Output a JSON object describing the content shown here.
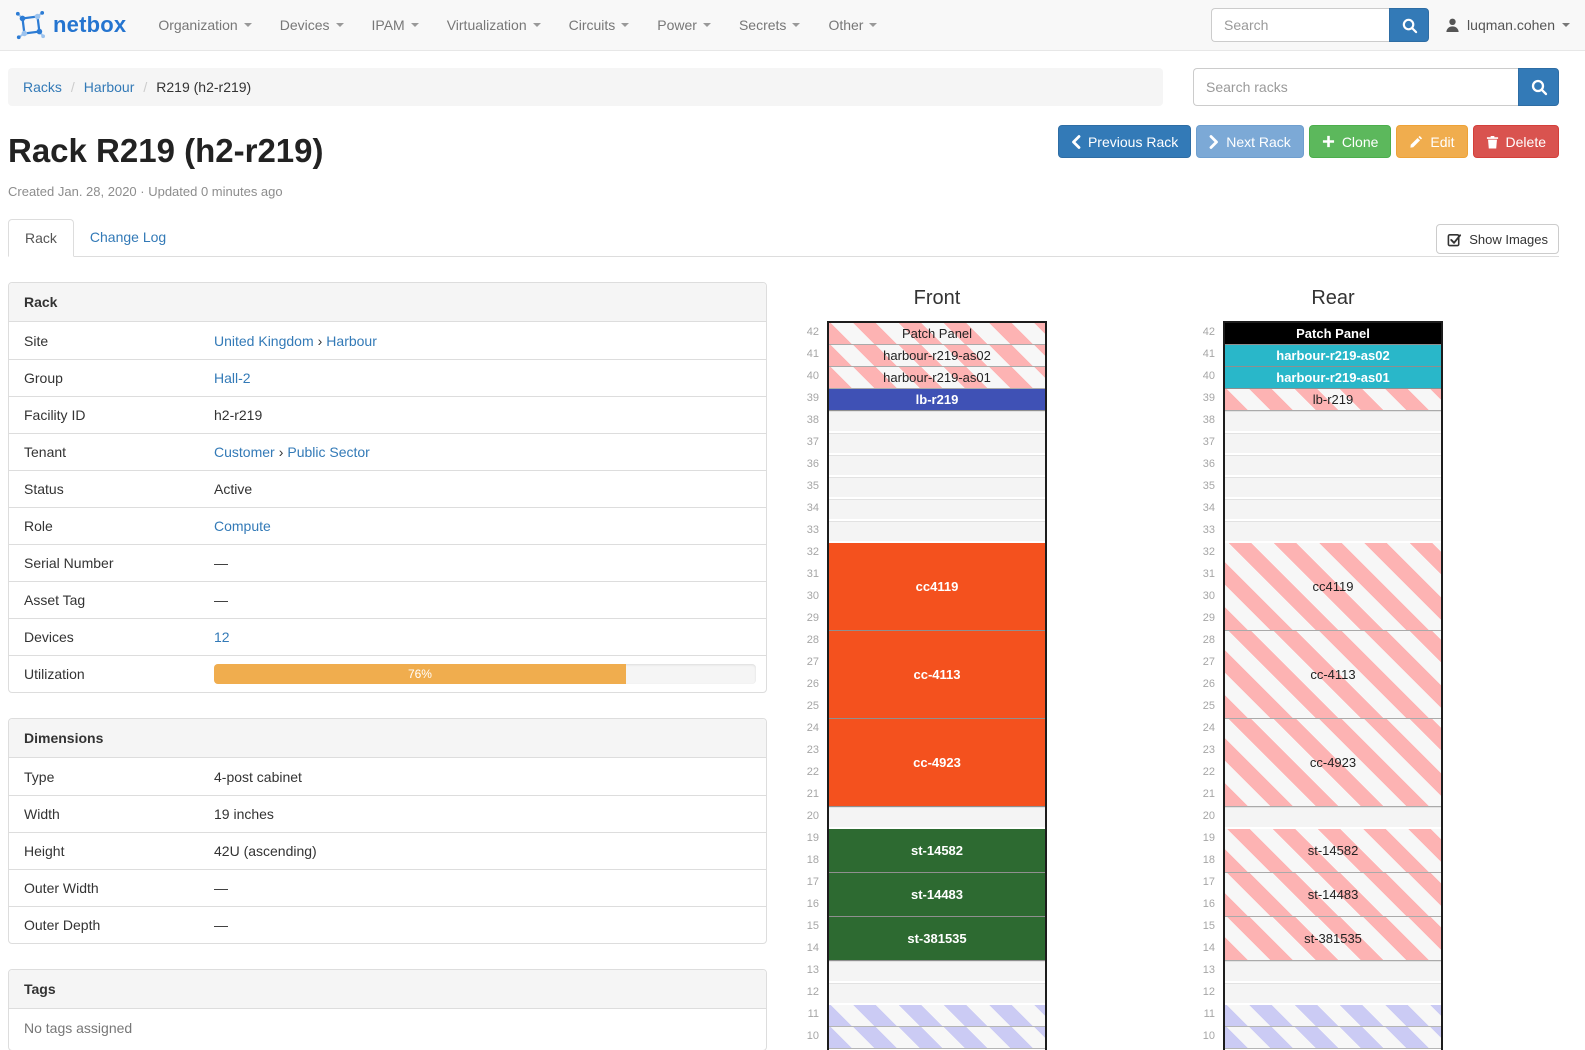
{
  "navbar": {
    "brand": "netbox",
    "items": [
      {
        "label": "Organization"
      },
      {
        "label": "Devices"
      },
      {
        "label": "IPAM"
      },
      {
        "label": "Virtualization"
      },
      {
        "label": "Circuits"
      },
      {
        "label": "Power"
      },
      {
        "label": "Secrets"
      },
      {
        "label": "Other"
      }
    ],
    "search_placeholder": "Search",
    "search_icon": "search-icon",
    "user": "luqman.cohen",
    "user_icon": "user-icon"
  },
  "breadcrumb": {
    "items": [
      {
        "label": "Racks",
        "link": true
      },
      {
        "label": "Harbour",
        "link": true
      },
      {
        "label": "R219 (h2-r219)",
        "link": false
      }
    ],
    "separator": "/"
  },
  "rack_search": {
    "placeholder": "Search racks",
    "icon": "search-icon"
  },
  "actions": {
    "previous": {
      "label": "Previous Rack",
      "icon": "chevron-left-icon",
      "color": "#337ab7"
    },
    "next": {
      "label": "Next Rack",
      "icon": "chevron-right-icon",
      "color": "#7ca9d6"
    },
    "clone": {
      "label": "Clone",
      "icon": "plus-icon",
      "color": "#5cb85c"
    },
    "edit": {
      "label": "Edit",
      "icon": "pencil-icon",
      "color": "#f0ad4e"
    },
    "delete": {
      "label": "Delete",
      "icon": "trash-icon",
      "color": "#d9534f"
    }
  },
  "page": {
    "title": "Rack R219 (h2-r219)",
    "meta": "Created Jan. 28, 2020 · Updated 0 minutes ago"
  },
  "tabs": [
    {
      "label": "Rack",
      "active": true
    },
    {
      "label": "Change Log",
      "active": false
    }
  ],
  "show_images": {
    "label": "Show Images",
    "icon": "check-square-icon"
  },
  "panels": {
    "rack": {
      "title": "Rack",
      "rows": [
        {
          "label": "Site",
          "values": [
            {
              "t": "United Kingdom",
              "k": "link"
            },
            {
              "t": "›",
              "k": "sep"
            },
            {
              "t": "Harbour",
              "k": "link"
            }
          ]
        },
        {
          "label": "Group",
          "values": [
            {
              "t": "Hall-2",
              "k": "link"
            }
          ]
        },
        {
          "label": "Facility ID",
          "values": [
            {
              "t": "h2-r219",
              "k": "text"
            }
          ]
        },
        {
          "label": "Tenant",
          "values": [
            {
              "t": "Customer",
              "k": "link"
            },
            {
              "t": "›",
              "k": "sep"
            },
            {
              "t": "Public Sector",
              "k": "link"
            }
          ]
        },
        {
          "label": "Status",
          "values": [
            {
              "t": "Active",
              "k": "text"
            }
          ]
        },
        {
          "label": "Role",
          "values": [
            {
              "t": "Compute",
              "k": "link"
            }
          ]
        },
        {
          "label": "Serial Number",
          "values": [
            {
              "t": "—",
              "k": "text"
            }
          ]
        },
        {
          "label": "Asset Tag",
          "values": [
            {
              "t": "—",
              "k": "text"
            }
          ]
        },
        {
          "label": "Devices",
          "values": [
            {
              "t": "12",
              "k": "link"
            }
          ]
        },
        {
          "label": "Utilization",
          "progress": {
            "percent": 76,
            "label": "76%",
            "color": "#f0ad4e"
          }
        }
      ]
    },
    "dimensions": {
      "title": "Dimensions",
      "rows": [
        {
          "label": "Type",
          "values": [
            {
              "t": "4-post cabinet",
              "k": "text"
            }
          ]
        },
        {
          "label": "Width",
          "values": [
            {
              "t": "19 inches",
              "k": "text"
            }
          ]
        },
        {
          "label": "Height",
          "values": [
            {
              "t": "42U (ascending)",
              "k": "text"
            }
          ]
        },
        {
          "label": "Outer Width",
          "values": [
            {
              "t": "—",
              "k": "text"
            }
          ]
        },
        {
          "label": "Outer Depth",
          "values": [
            {
              "t": "—",
              "k": "text"
            }
          ]
        }
      ]
    },
    "tags": {
      "title": "Tags",
      "empty_text": "No tags assigned"
    }
  },
  "elevations": {
    "unit_start": 42,
    "unit_end_visible": 10,
    "front": {
      "title": "Front",
      "blocks": [
        {
          "label": "Patch Panel",
          "units": 1,
          "style": "striped-pink"
        },
        {
          "label": "harbour-r219-as02",
          "units": 1,
          "style": "striped-pink"
        },
        {
          "label": "harbour-r219-as01",
          "units": 1,
          "style": "striped-pink"
        },
        {
          "label": "lb-r219",
          "units": 1,
          "style": "solid",
          "color": "#3f51b5"
        },
        {
          "units": 1,
          "style": "empty"
        },
        {
          "units": 1,
          "style": "empty"
        },
        {
          "units": 1,
          "style": "empty"
        },
        {
          "units": 1,
          "style": "empty"
        },
        {
          "units": 1,
          "style": "empty"
        },
        {
          "units": 1,
          "style": "empty"
        },
        {
          "label": "cc4119",
          "units": 4,
          "style": "solid",
          "color": "#f4511e"
        },
        {
          "label": "cc-4113",
          "units": 4,
          "style": "solid",
          "color": "#f4511e"
        },
        {
          "label": "cc-4923",
          "units": 4,
          "style": "solid",
          "color": "#f4511e"
        },
        {
          "units": 1,
          "style": "empty"
        },
        {
          "label": "st-14582",
          "units": 2,
          "style": "solid",
          "color": "#2d6a31"
        },
        {
          "label": "st-14483",
          "units": 2,
          "style": "solid",
          "color": "#2d6a31"
        },
        {
          "label": "st-381535",
          "units": 2,
          "style": "solid",
          "color": "#2d6a31"
        },
        {
          "units": 1,
          "style": "empty"
        },
        {
          "units": 1,
          "style": "empty"
        },
        {
          "units": 1,
          "style": "striped-blue"
        },
        {
          "units": 1,
          "style": "striped-blue"
        }
      ]
    },
    "rear": {
      "title": "Rear",
      "blocks": [
        {
          "label": "Patch Panel",
          "units": 1,
          "style": "solid",
          "color": "#000000"
        },
        {
          "label": "harbour-r219-as02",
          "units": 1,
          "style": "solid",
          "color": "#29b7c9"
        },
        {
          "label": "harbour-r219-as01",
          "units": 1,
          "style": "solid",
          "color": "#29b7c9"
        },
        {
          "label": "lb-r219",
          "units": 1,
          "style": "striped-pink"
        },
        {
          "units": 1,
          "style": "empty"
        },
        {
          "units": 1,
          "style": "empty"
        },
        {
          "units": 1,
          "style": "empty"
        },
        {
          "units": 1,
          "style": "empty"
        },
        {
          "units": 1,
          "style": "empty"
        },
        {
          "units": 1,
          "style": "empty"
        },
        {
          "label": "cc4119",
          "units": 4,
          "style": "striped-pink"
        },
        {
          "label": "cc-4113",
          "units": 4,
          "style": "striped-pink"
        },
        {
          "label": "cc-4923",
          "units": 4,
          "style": "striped-pink"
        },
        {
          "units": 1,
          "style": "empty"
        },
        {
          "label": "st-14582",
          "units": 2,
          "style": "striped-pink"
        },
        {
          "label": "st-14483",
          "units": 2,
          "style": "striped-pink"
        },
        {
          "label": "st-381535",
          "units": 2,
          "style": "striped-pink"
        },
        {
          "units": 1,
          "style": "empty"
        },
        {
          "units": 1,
          "style": "empty"
        },
        {
          "units": 1,
          "style": "striped-blue"
        },
        {
          "units": 1,
          "style": "striped-blue"
        }
      ]
    }
  },
  "colors": {
    "accent_blue": "#337ab7",
    "brand_blue": "#2575d0",
    "success_green": "#5cb85c",
    "warning_orange": "#f0ad4e",
    "danger_red": "#d9534f",
    "device_orange": "#f4511e",
    "device_green": "#2d6a31",
    "device_indigo": "#3f51b5",
    "device_cyan": "#29b7c9",
    "device_black": "#000000",
    "stripe_pink": "#fdb3b3",
    "stripe_lavender": "#cbcbf4"
  }
}
